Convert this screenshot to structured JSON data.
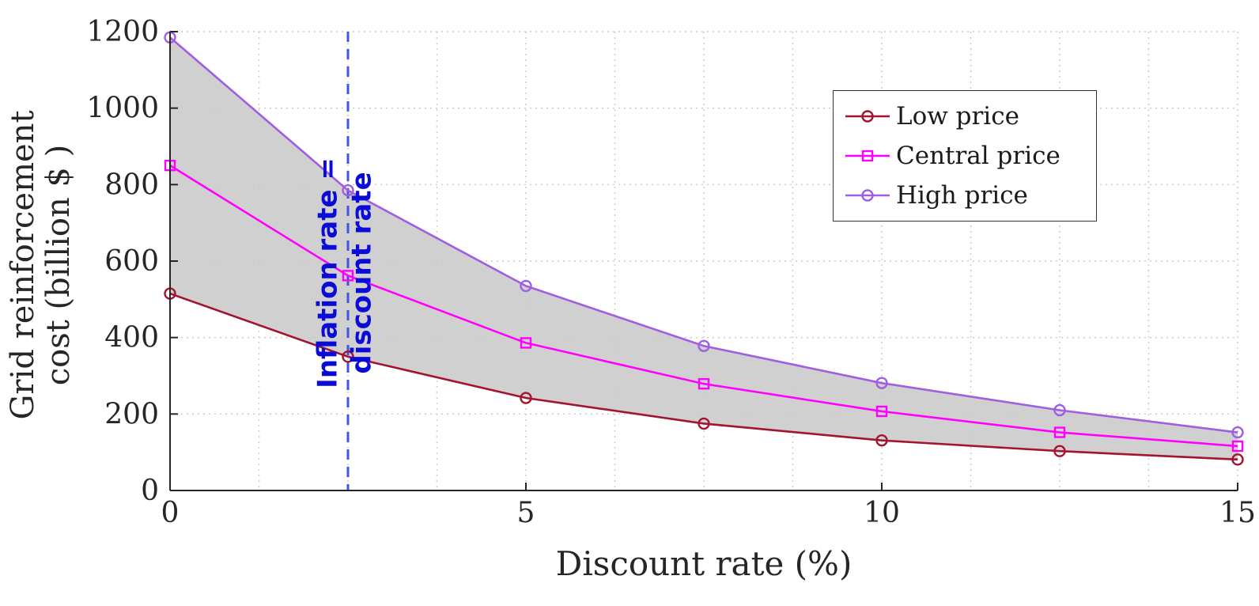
{
  "chart_data": {
    "type": "line",
    "title": "",
    "xlabel": "Discount rate (%)",
    "ylabel": "Grid reinforcement cost (billion $ )",
    "ylabel_lines": [
      "Grid reinforcement",
      "cost (billion $ )"
    ],
    "xlim": [
      0,
      15
    ],
    "ylim": [
      0,
      1200
    ],
    "x_ticks": [
      {
        "v": 0,
        "label": "0"
      },
      {
        "v": 5,
        "label": "5"
      },
      {
        "v": 10,
        "label": "10"
      },
      {
        "v": 15,
        "label": "15"
      }
    ],
    "y_ticks": [
      {
        "v": 0,
        "label": "0"
      },
      {
        "v": 200,
        "label": "200"
      },
      {
        "v": 400,
        "label": "400"
      },
      {
        "v": 600,
        "label": "600"
      },
      {
        "v": 800,
        "label": "800"
      },
      {
        "v": 1000,
        "label": "1000"
      },
      {
        "v": 1200,
        "label": "1200"
      }
    ],
    "grid": {
      "x_step": 1.25,
      "y_step": 200,
      "style": "dotted",
      "color": "#c9c9c9"
    },
    "x": [
      0,
      2.5,
      5,
      7.5,
      10,
      12.5,
      15
    ],
    "series": [
      {
        "name": "Low price",
        "color": "#A2142F",
        "marker": "circle",
        "values": [
          515,
          350,
          242,
          175,
          131,
          103,
          81
        ]
      },
      {
        "name": "Central price",
        "color": "#FF00FF",
        "marker": "square",
        "values": [
          850,
          562,
          386,
          279,
          207,
          152,
          116
        ]
      },
      {
        "name": "High price",
        "color": "#9F5FE0",
        "marker": "circle",
        "values": [
          1185,
          785,
          535,
          378,
          281,
          210,
          152
        ]
      }
    ],
    "band": {
      "between": [
        0,
        2
      ],
      "color": "#CBCBCB",
      "opacity": 0.9
    },
    "annotation": {
      "x": 2.5,
      "line_color": "#4355DC",
      "line_style": "dashed",
      "text": "Inflation rate = discount rate",
      "lines": [
        "Inflation rate =",
        "discount rate"
      ],
      "text_color": "#0B0BD8"
    },
    "legend": {
      "position": "top-right",
      "entries": [
        "Low price",
        "Central price",
        "High price"
      ]
    },
    "axis_color": "#262626"
  }
}
